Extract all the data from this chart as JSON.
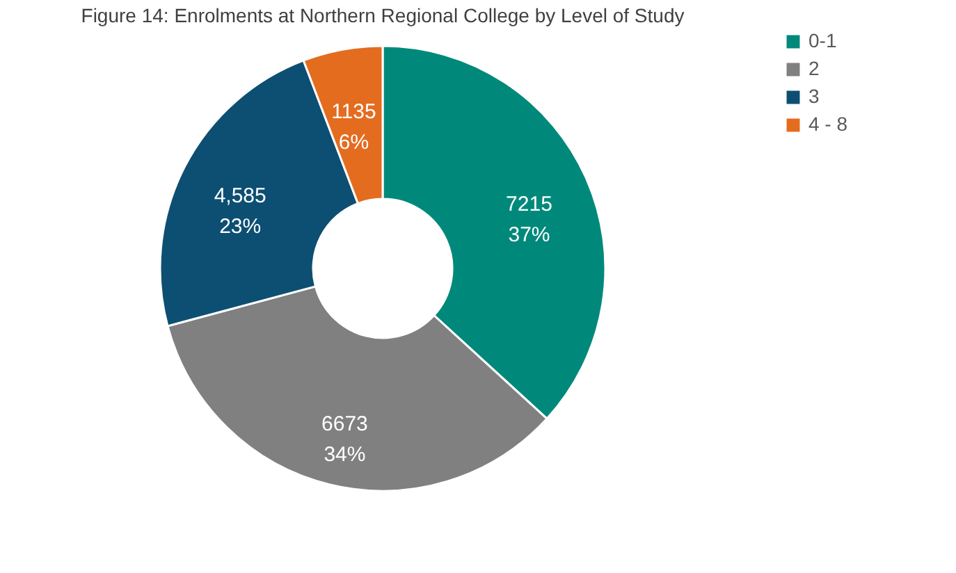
{
  "chart_data": {
    "type": "donut",
    "title": "Figure 14: Enrolments at Northern Regional College by Level of Study",
    "categories": [
      "0-1",
      "2",
      "3",
      "4 - 8"
    ],
    "values": [
      7215,
      6673,
      4585,
      1135
    ],
    "colors": [
      "#00897b",
      "#808080",
      "#0d4f72",
      "#e46c1f"
    ],
    "value_labels": [
      "7215\n37%",
      "6673\n34%",
      "4,585\n23%",
      "1135\n6%"
    ],
    "legend": "right"
  }
}
